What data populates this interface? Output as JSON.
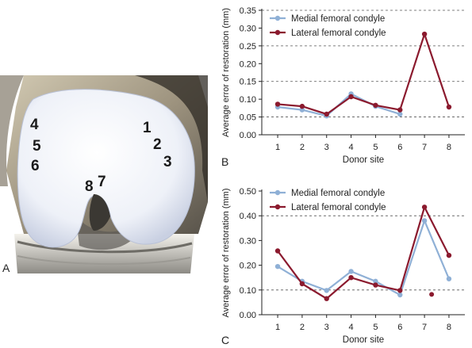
{
  "panels": {
    "a_label": "A",
    "b_label": "B",
    "c_label": "C"
  },
  "illustration": {
    "site_numbers": [
      "1",
      "2",
      "3",
      "4",
      "5",
      "6",
      "7",
      "8"
    ]
  },
  "colors": {
    "medial": "#8fb0d6",
    "lateral": "#8b1a2e",
    "axis": "#222222",
    "grid": "#555555"
  },
  "chart_data": [
    {
      "id": "chart-b",
      "type": "line",
      "ylabel": "Average error of restoration (mm)",
      "xlabel": "Donor site",
      "categories": [
        "1",
        "2",
        "3",
        "4",
        "5",
        "6",
        "7",
        "8"
      ],
      "ylim": [
        0,
        0.35
      ],
      "yticks": [
        "0.00",
        "0.05",
        "0.10",
        "0.15",
        "0.20",
        "0.25",
        "0.30",
        "0.35"
      ],
      "grid": "dashed horizontal at 0.05, 0.15, 0.25, 0.35",
      "legend_position": "top-left",
      "series": [
        {
          "name": "Medial femoral condyle",
          "values": [
            0.078,
            0.07,
            0.053,
            0.115,
            0.08,
            0.058,
            null,
            null
          ]
        },
        {
          "name": "Lateral femoral condyle",
          "values": [
            0.086,
            0.08,
            0.058,
            0.107,
            0.083,
            0.07,
            0.283,
            0.078
          ]
        }
      ]
    },
    {
      "id": "chart-c",
      "type": "line",
      "ylabel": "Average error of restoration (mm)",
      "xlabel": "Donor site",
      "categories": [
        "1",
        "2",
        "3",
        "4",
        "5",
        "6",
        "7",
        "8"
      ],
      "ylim": [
        0,
        0.5
      ],
      "yticks": [
        "0.00",
        "0.10",
        "0.20",
        "0.30",
        "0.40",
        "0.50"
      ],
      "grid": "dashed horizontal at 0.10, 0.40",
      "legend_position": "top-left",
      "series": [
        {
          "name": "Medial femoral condyle",
          "values": [
            0.195,
            0.135,
            0.098,
            0.175,
            0.135,
            0.08,
            0.38,
            0.145
          ]
        },
        {
          "name": "Lateral femoral condyle",
          "values": [
            0.258,
            0.125,
            0.065,
            0.15,
            0.12,
            0.098,
            0.435,
            0.24
          ]
        }
      ],
      "extra_points": [
        {
          "series": "Lateral femoral condyle",
          "x": "7",
          "value": 0.082
        }
      ]
    }
  ]
}
